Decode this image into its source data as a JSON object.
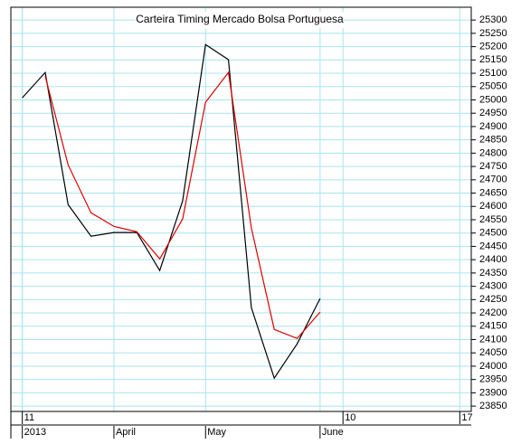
{
  "chart_data": {
    "type": "line",
    "title": "Carteira Timing Mercado Bolsa Portuguesa",
    "x": [
      0,
      1,
      2,
      3,
      4,
      5,
      6,
      7,
      8,
      9,
      10,
      11,
      12,
      13
    ],
    "series": [
      {
        "color": "#000000",
        "values": [
          25008,
          25103,
          24607,
          24488,
          24502,
          24502,
          24359,
          24621,
          25208,
          25151,
          24220,
          23955,
          24084,
          24254
        ]
      },
      {
        "color": "#e00000",
        "values": [
          null,
          25089,
          24756,
          24576,
          24525,
          24505,
          24403,
          24553,
          24991,
          25103,
          24519,
          24138,
          24104,
          24203
        ]
      }
    ],
    "xlim": [
      -0.5,
      19.6
    ],
    "xticks": [
      {
        "value": 0,
        "label": "11"
      },
      {
        "value": 14,
        "label": "10"
      },
      {
        "value": 19.1,
        "label": "17"
      }
    ],
    "xticks2": [
      {
        "value": 0,
        "label": "2013"
      },
      {
        "value": 4,
        "label": "April"
      },
      {
        "value": 8,
        "label": "May"
      },
      {
        "value": 13,
        "label": "June"
      }
    ],
    "ylim": [
      23830,
      25348
    ],
    "yticks": [
      23850,
      23900,
      23950,
      24000,
      24050,
      24100,
      24150,
      24200,
      24250,
      24300,
      24350,
      24400,
      24450,
      24500,
      24550,
      24600,
      24650,
      24700,
      24750,
      24800,
      24850,
      24900,
      24950,
      25000,
      25050,
      25100,
      25150,
      25200,
      25250,
      25300
    ],
    "grid": true
  }
}
